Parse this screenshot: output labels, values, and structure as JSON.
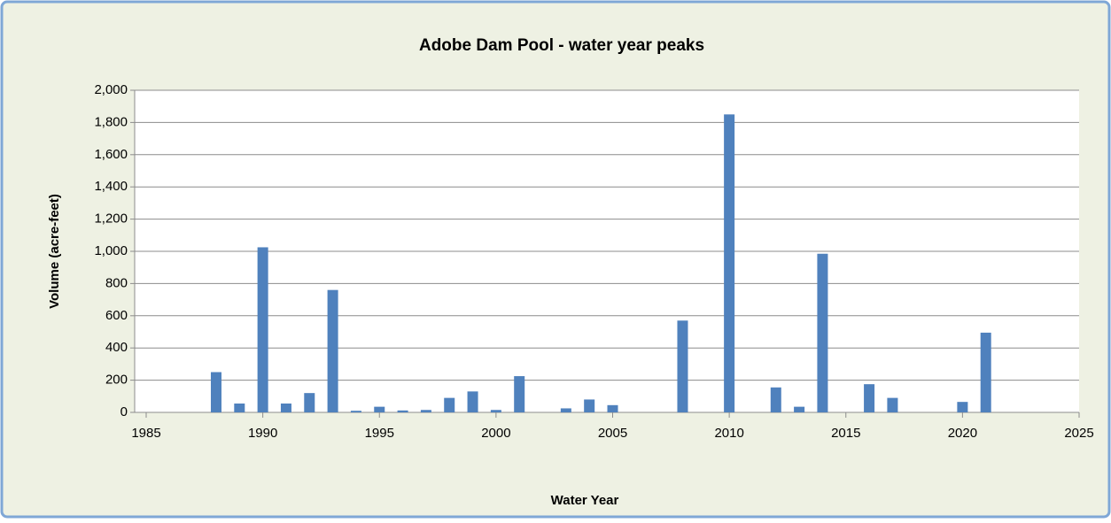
{
  "chart_data": {
    "type": "bar",
    "title": "Adobe Dam Pool - water year peaks",
    "x_label": "Water Year",
    "y_label": "Volume (acre-feet)",
    "x": [
      1988,
      1989,
      1990,
      1991,
      1992,
      1993,
      1994,
      1995,
      1996,
      1997,
      1998,
      1999,
      2000,
      2001,
      2003,
      2004,
      2005,
      2008,
      2010,
      2012,
      2013,
      2014,
      2016,
      2017,
      2020,
      2021
    ],
    "values": [
      250,
      55,
      1025,
      55,
      120,
      760,
      10,
      35,
      12,
      15,
      90,
      130,
      15,
      225,
      25,
      80,
      45,
      570,
      1850,
      155,
      35,
      985,
      175,
      90,
      65,
      495
    ],
    "color": "#4f81bd",
    "xlim": [
      1985,
      2025
    ],
    "xticks": [
      1985,
      1990,
      1995,
      2000,
      2005,
      2010,
      2015,
      2020,
      2025
    ],
    "ylim": [
      0,
      2000
    ],
    "yticks": [
      0,
      200,
      400,
      600,
      800,
      {
        "value": 1000,
        "label": "1,000"
      },
      {
        "value": 1200,
        "label": "1,200"
      },
      {
        "value": 1400,
        "label": "1,400"
      },
      {
        "value": 1600,
        "label": "1,600"
      },
      {
        "value": 1800,
        "label": "1,800"
      },
      {
        "value": 2000,
        "label": "2,000"
      }
    ],
    "grid": true
  }
}
